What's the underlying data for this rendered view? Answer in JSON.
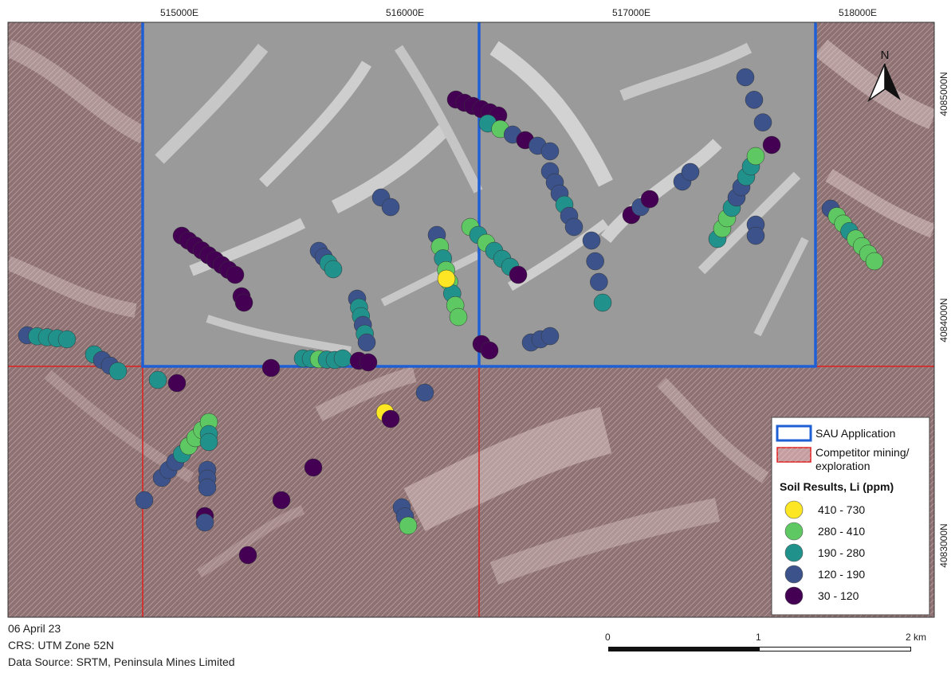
{
  "map": {
    "grid_labels_top": [
      "515000E",
      "516000E",
      "517000E",
      "518000E"
    ],
    "grid_labels_right": [
      "4085000N",
      "4084000N",
      "4083000N"
    ],
    "north_label": "N",
    "colors": {
      "application_border": "#1f5fd6",
      "competitor_border": "#e02020",
      "competitor_fill": "#c49ea0"
    }
  },
  "legend": {
    "application_label": "SAU Application",
    "competitor_label_1": "Competitor mining/",
    "competitor_label_2": "exploration",
    "soil_title": "Soil Results, Li (ppm)",
    "classes": [
      {
        "label": "410 - 730",
        "color": "#fde725"
      },
      {
        "label": "280 - 410",
        "color": "#5ec962"
      },
      {
        "label": "190 - 280",
        "color": "#21918c"
      },
      {
        "label": "120 - 190",
        "color": "#3b528b"
      },
      {
        "label": "30 - 120",
        "color": "#440154"
      }
    ]
  },
  "footer": {
    "date": "06 April 23",
    "crs": "CRS: UTM Zone 52N",
    "source": "Data Source: SRTM, Peninsula Mines Limited"
  },
  "scale_bar": {
    "labels": [
      "0",
      "1",
      "2 km"
    ]
  }
}
